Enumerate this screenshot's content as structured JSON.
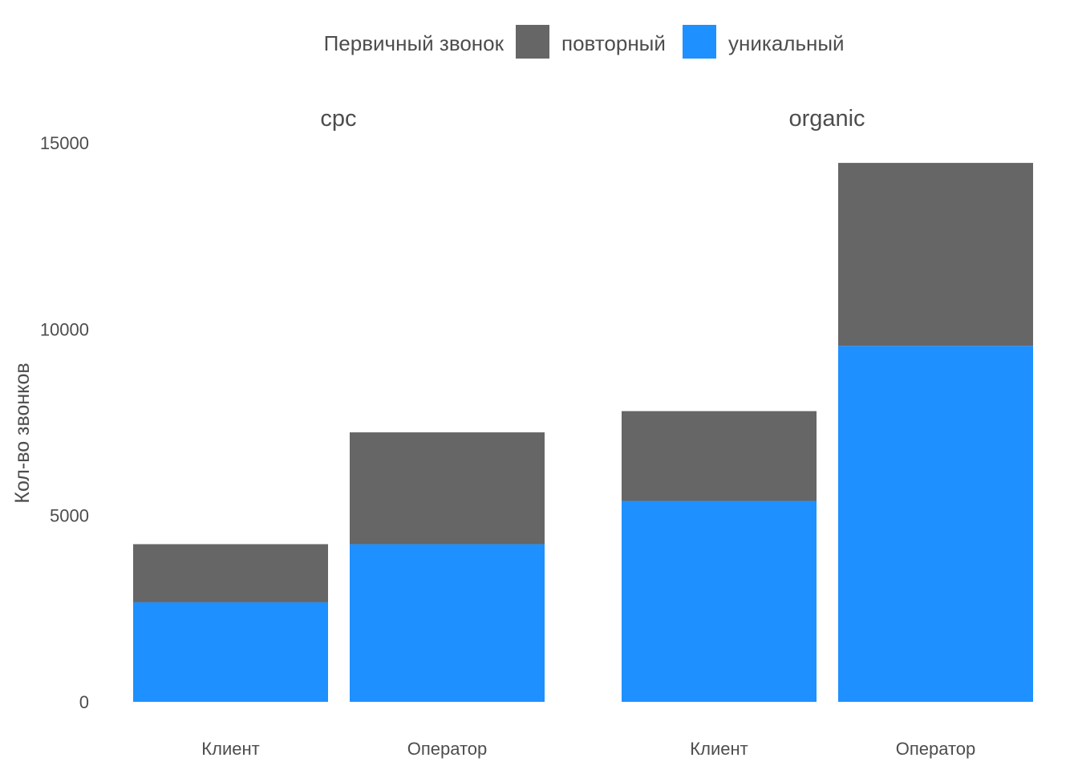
{
  "chart_data": {
    "type": "bar",
    "stacked": true,
    "ylabel": "Кол-во звонков",
    "xlabel": "",
    "ylim": [
      0,
      15000
    ],
    "yticks": [
      0,
      5000,
      10000,
      15000
    ],
    "ytick_labels": [
      "0",
      "5000",
      "10000",
      "15000"
    ],
    "grid": false,
    "legend": {
      "title": "Первичный звонок",
      "placement": "top",
      "entries": [
        {
          "name": "повторный",
          "color": "#666666"
        },
        {
          "name": "уникальный",
          "color": "#1e90ff"
        }
      ]
    },
    "facets": [
      {
        "title": "cpc",
        "categories": [
          "Клиент",
          "Оператор"
        ],
        "series": [
          {
            "name": "уникальный",
            "values": [
              2670,
              4230
            ]
          },
          {
            "name": "повторный",
            "values": [
              1560,
              3000
            ]
          }
        ]
      },
      {
        "title": "organic",
        "categories": [
          "Клиент",
          "Оператор"
        ],
        "series": [
          {
            "name": "уникальный",
            "values": [
              5390,
              9550
            ]
          },
          {
            "name": "повторный",
            "values": [
              2410,
              4910
            ]
          }
        ]
      }
    ]
  }
}
